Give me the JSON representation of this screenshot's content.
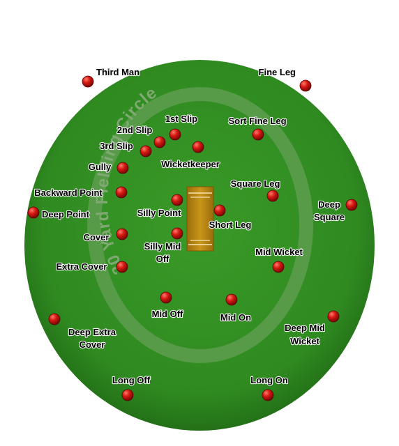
{
  "diagram": {
    "ring_label": "30 Yard Fielding Circle",
    "colors": {
      "ground": "#2f8a20",
      "ground_dark": "#1e6414",
      "ring": "#5e9e4f",
      "pitch": "#b8860b",
      "ball": "#cc1111"
    },
    "positions": [
      {
        "id": "third-man",
        "label": "Third Man"
      },
      {
        "id": "fine-leg",
        "label": "Fine Leg"
      },
      {
        "id": "1st-slip",
        "label": "1st Slip"
      },
      {
        "id": "2nd-slip",
        "label": "2nd Slip"
      },
      {
        "id": "3rd-slip",
        "label": "3rd Slip"
      },
      {
        "id": "sort-fine-leg",
        "label": "Sort Fine Leg"
      },
      {
        "id": "gully",
        "label": "Gully"
      },
      {
        "id": "wicketkeeper",
        "label": "Wicketkeeper"
      },
      {
        "id": "square-leg",
        "label": "Square Leg"
      },
      {
        "id": "backward-point",
        "label": "Backward Point"
      },
      {
        "id": "deep-point",
        "label": "Deep Point"
      },
      {
        "id": "silly-point",
        "label": "Silly Point"
      },
      {
        "id": "short-leg",
        "label": "Short Leg"
      },
      {
        "id": "deep-square",
        "label": "Deep Square"
      },
      {
        "id": "cover",
        "label": "Cover"
      },
      {
        "id": "silly-mid-off",
        "label": "Silly Mid Off"
      },
      {
        "id": "mid-wicket",
        "label": "Mid Wicket"
      },
      {
        "id": "extra-cover",
        "label": "Extra Cover"
      },
      {
        "id": "mid-off",
        "label": "Mid Off"
      },
      {
        "id": "mid-on",
        "label": "Mid On"
      },
      {
        "id": "deep-extra-cover",
        "label": "Deep Extra Cover"
      },
      {
        "id": "deep-mid-wicket",
        "label": "Deep Mid Wicket"
      },
      {
        "id": "long-off",
        "label": "Long Off"
      },
      {
        "id": "long-on",
        "label": "Long On"
      }
    ]
  }
}
